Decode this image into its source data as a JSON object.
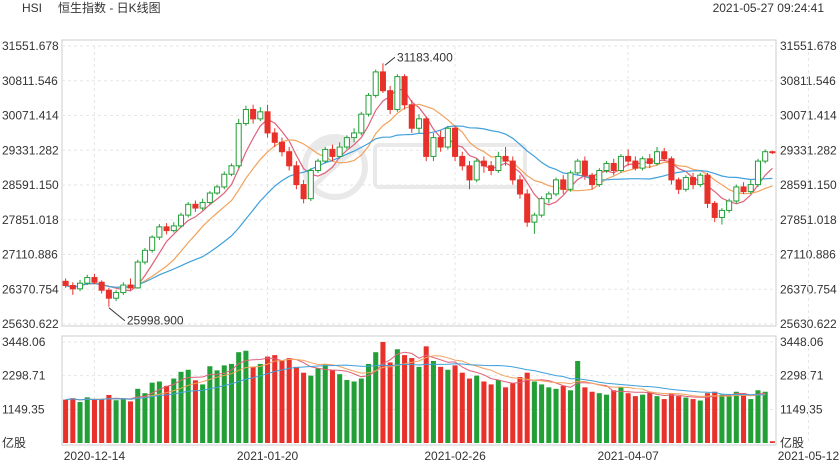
{
  "header": {
    "symbol": "HSI",
    "title": "恒生指数 - 日K线图",
    "datetime": "2021-05-27 09:24:41"
  },
  "colors": {
    "up": "#22a037",
    "down": "#e8312a",
    "ma5": "#e0607a",
    "ma10": "#f2a25c",
    "ma20": "#3fa0dc",
    "vol_ma": "#e0607a",
    "vol_ma2": "#3fa0dc"
  },
  "chart_data": {
    "type": "candlestick",
    "price_axis": {
      "ticks": [
        "31551.678",
        "30811.546",
        "30071.414",
        "29331.282",
        "28591.150",
        "27851.018",
        "27110.886",
        "26370.754",
        "25630.622"
      ],
      "ylim": [
        25630.622,
        31551.678
      ]
    },
    "volume_axis": {
      "ticks": [
        "3448.06",
        "2298.71",
        "1149.35",
        "亿股"
      ],
      "ylim": [
        0,
        3448.06
      ]
    },
    "x_tick_labels": [
      {
        "label": "2020-12-14",
        "index": 4
      },
      {
        "label": "2021-01-20",
        "index": 28
      },
      {
        "label": "2021-02-26",
        "index": 54
      },
      {
        "label": "2021-04-07",
        "index": 78
      },
      {
        "label": "2021-05-12",
        "index": 103
      }
    ],
    "annotations": [
      {
        "label": "31183.400",
        "index": 44,
        "value": 31183.4
      },
      {
        "label": "25998.900",
        "index": 6,
        "value": 25998.9
      }
    ],
    "candles": [
      {
        "o": 26540,
        "c": 26450,
        "h": 26600,
        "l": 26400,
        "v": 1480
      },
      {
        "o": 26450,
        "c": 26380,
        "h": 26520,
        "l": 26250,
        "v": 1530
      },
      {
        "o": 26380,
        "c": 26500,
        "h": 26570,
        "l": 26330,
        "v": 1400
      },
      {
        "o": 26500,
        "c": 26620,
        "h": 26680,
        "l": 26460,
        "v": 1560
      },
      {
        "o": 26620,
        "c": 26520,
        "h": 26700,
        "l": 26480,
        "v": 1480
      },
      {
        "o": 26520,
        "c": 26350,
        "h": 26560,
        "l": 26280,
        "v": 1500
      },
      {
        "o": 26350,
        "c": 26180,
        "h": 26400,
        "l": 25999,
        "v": 1640
      },
      {
        "o": 26180,
        "c": 26300,
        "h": 26350,
        "l": 26120,
        "v": 1460
      },
      {
        "o": 26300,
        "c": 26460,
        "h": 26520,
        "l": 26250,
        "v": 1500
      },
      {
        "o": 26460,
        "c": 26400,
        "h": 26600,
        "l": 26350,
        "v": 1420
      },
      {
        "o": 26400,
        "c": 26950,
        "h": 27000,
        "l": 26380,
        "v": 1850
      },
      {
        "o": 26950,
        "c": 27200,
        "h": 27250,
        "l": 26900,
        "v": 1700
      },
      {
        "o": 27200,
        "c": 27480,
        "h": 27520,
        "l": 27150,
        "v": 2060
      },
      {
        "o": 27480,
        "c": 27700,
        "h": 27760,
        "l": 27420,
        "v": 2100
      },
      {
        "o": 27700,
        "c": 27620,
        "h": 27780,
        "l": 27540,
        "v": 1950
      },
      {
        "o": 27620,
        "c": 27720,
        "h": 27800,
        "l": 27580,
        "v": 2200
      },
      {
        "o": 27720,
        "c": 27950,
        "h": 28000,
        "l": 27680,
        "v": 2430
      },
      {
        "o": 27950,
        "c": 28180,
        "h": 28230,
        "l": 27900,
        "v": 2500
      },
      {
        "o": 28180,
        "c": 28100,
        "h": 28260,
        "l": 28020,
        "v": 2140
      },
      {
        "o": 28100,
        "c": 28220,
        "h": 28300,
        "l": 28050,
        "v": 2000
      },
      {
        "o": 28220,
        "c": 28420,
        "h": 28460,
        "l": 28170,
        "v": 2620
      },
      {
        "o": 28420,
        "c": 28550,
        "h": 28600,
        "l": 28380,
        "v": 2480
      },
      {
        "o": 28550,
        "c": 28820,
        "h": 28880,
        "l": 28500,
        "v": 2650
      },
      {
        "o": 28820,
        "c": 29000,
        "h": 29050,
        "l": 28780,
        "v": 2700
      },
      {
        "o": 29000,
        "c": 29900,
        "h": 30000,
        "l": 28950,
        "v": 3100
      },
      {
        "o": 29900,
        "c": 30200,
        "h": 30280,
        "l": 29850,
        "v": 3150
      },
      {
        "o": 30200,
        "c": 30000,
        "h": 30300,
        "l": 29900,
        "v": 2600
      },
      {
        "o": 30000,
        "c": 30150,
        "h": 30250,
        "l": 29950,
        "v": 2700
      },
      {
        "o": 30150,
        "c": 29700,
        "h": 30300,
        "l": 29600,
        "v": 2950
      },
      {
        "o": 29700,
        "c": 29500,
        "h": 29800,
        "l": 29400,
        "v": 3000
      },
      {
        "o": 29500,
        "c": 29300,
        "h": 29600,
        "l": 29200,
        "v": 2800
      },
      {
        "o": 29300,
        "c": 29000,
        "h": 29400,
        "l": 28900,
        "v": 2900
      },
      {
        "o": 29000,
        "c": 28600,
        "h": 29100,
        "l": 28500,
        "v": 2600
      },
      {
        "o": 28600,
        "c": 28300,
        "h": 28700,
        "l": 28200,
        "v": 2400
      },
      {
        "o": 28300,
        "c": 28900,
        "h": 28950,
        "l": 28250,
        "v": 2300
      },
      {
        "o": 28900,
        "c": 29100,
        "h": 29150,
        "l": 28850,
        "v": 2550
      },
      {
        "o": 29100,
        "c": 29350,
        "h": 29400,
        "l": 29050,
        "v": 2700
      },
      {
        "o": 29350,
        "c": 29200,
        "h": 29450,
        "l": 29100,
        "v": 2500
      },
      {
        "o": 29200,
        "c": 29400,
        "h": 29500,
        "l": 29150,
        "v": 2350
      },
      {
        "o": 29400,
        "c": 29600,
        "h": 29650,
        "l": 29350,
        "v": 2150
      },
      {
        "o": 29600,
        "c": 29700,
        "h": 29800,
        "l": 29500,
        "v": 2100
      },
      {
        "o": 29700,
        "c": 30100,
        "h": 30150,
        "l": 29650,
        "v": 2200
      },
      {
        "o": 30100,
        "c": 30500,
        "h": 30550,
        "l": 30050,
        "v": 2700
      },
      {
        "o": 30500,
        "c": 31000,
        "h": 31050,
        "l": 30450,
        "v": 3100
      },
      {
        "o": 31000,
        "c": 30600,
        "h": 31183,
        "l": 30550,
        "v": 3450
      },
      {
        "o": 30600,
        "c": 30200,
        "h": 30700,
        "l": 30100,
        "v": 2750
      },
      {
        "o": 30200,
        "c": 30900,
        "h": 30950,
        "l": 30150,
        "v": 3200
      },
      {
        "o": 30900,
        "c": 30300,
        "h": 30950,
        "l": 30200,
        "v": 3000
      },
      {
        "o": 30300,
        "c": 29800,
        "h": 30400,
        "l": 29700,
        "v": 2900
      },
      {
        "o": 29800,
        "c": 30000,
        "h": 30100,
        "l": 29700,
        "v": 2600
      },
      {
        "o": 30000,
        "c": 29200,
        "h": 30050,
        "l": 29100,
        "v": 3300
      },
      {
        "o": 29200,
        "c": 29600,
        "h": 29700,
        "l": 29100,
        "v": 2800
      },
      {
        "o": 29600,
        "c": 29400,
        "h": 29750,
        "l": 29300,
        "v": 2600
      },
      {
        "o": 29400,
        "c": 29800,
        "h": 29850,
        "l": 29350,
        "v": 2500
      },
      {
        "o": 29800,
        "c": 29200,
        "h": 29850,
        "l": 29100,
        "v": 2650
      },
      {
        "o": 29200,
        "c": 29000,
        "h": 29300,
        "l": 28900,
        "v": 2400
      },
      {
        "o": 29000,
        "c": 28700,
        "h": 29100,
        "l": 28500,
        "v": 2200
      },
      {
        "o": 28700,
        "c": 29100,
        "h": 29150,
        "l": 28650,
        "v": 2300
      },
      {
        "o": 29100,
        "c": 29000,
        "h": 29200,
        "l": 28850,
        "v": 2100
      },
      {
        "o": 29000,
        "c": 28900,
        "h": 29100,
        "l": 28800,
        "v": 2000
      },
      {
        "o": 28900,
        "c": 29200,
        "h": 29300,
        "l": 28850,
        "v": 2150
      },
      {
        "o": 29200,
        "c": 29100,
        "h": 29400,
        "l": 29000,
        "v": 1900
      },
      {
        "o": 29100,
        "c": 28700,
        "h": 29200,
        "l": 28600,
        "v": 2050
      },
      {
        "o": 28700,
        "c": 28400,
        "h": 28800,
        "l": 28300,
        "v": 2250
      },
      {
        "o": 28400,
        "c": 27800,
        "h": 28500,
        "l": 27700,
        "v": 2400
      },
      {
        "o": 27800,
        "c": 27950,
        "h": 28000,
        "l": 27550,
        "v": 2100
      },
      {
        "o": 27950,
        "c": 28300,
        "h": 28350,
        "l": 27900,
        "v": 2000
      },
      {
        "o": 28300,
        "c": 28400,
        "h": 28450,
        "l": 28200,
        "v": 1900
      },
      {
        "o": 28400,
        "c": 28700,
        "h": 28750,
        "l": 28350,
        "v": 1850
      },
      {
        "o": 28700,
        "c": 28500,
        "h": 28800,
        "l": 28400,
        "v": 1950
      },
      {
        "o": 28500,
        "c": 28850,
        "h": 28900,
        "l": 28450,
        "v": 1800
      },
      {
        "o": 28850,
        "c": 29100,
        "h": 29150,
        "l": 28800,
        "v": 2800
      },
      {
        "o": 29100,
        "c": 28800,
        "h": 29200,
        "l": 28700,
        "v": 1900
      },
      {
        "o": 28800,
        "c": 28600,
        "h": 28850,
        "l": 28500,
        "v": 1750
      },
      {
        "o": 28600,
        "c": 28900,
        "h": 28950,
        "l": 28550,
        "v": 1700
      },
      {
        "o": 28900,
        "c": 29050,
        "h": 29100,
        "l": 28850,
        "v": 1650
      },
      {
        "o": 29050,
        "c": 28900,
        "h": 29150,
        "l": 28800,
        "v": 1800
      },
      {
        "o": 28900,
        "c": 29200,
        "h": 29250,
        "l": 28850,
        "v": 1900
      },
      {
        "o": 29200,
        "c": 29100,
        "h": 29350,
        "l": 29000,
        "v": 1700
      },
      {
        "o": 29100,
        "c": 28950,
        "h": 29200,
        "l": 28900,
        "v": 1600
      },
      {
        "o": 28950,
        "c": 29150,
        "h": 29200,
        "l": 28900,
        "v": 1650
      },
      {
        "o": 29150,
        "c": 29050,
        "h": 29250,
        "l": 28950,
        "v": 1750
      },
      {
        "o": 29050,
        "c": 29300,
        "h": 29400,
        "l": 29000,
        "v": 1600
      },
      {
        "o": 29300,
        "c": 29150,
        "h": 29380,
        "l": 29100,
        "v": 1500
      },
      {
        "o": 29150,
        "c": 28700,
        "h": 29200,
        "l": 28600,
        "v": 1700
      },
      {
        "o": 28700,
        "c": 28500,
        "h": 28750,
        "l": 28400,
        "v": 1600
      },
      {
        "o": 28500,
        "c": 28750,
        "h": 28800,
        "l": 28450,
        "v": 1550
      },
      {
        "o": 28750,
        "c": 28600,
        "h": 28850,
        "l": 28500,
        "v": 1500
      },
      {
        "o": 28600,
        "c": 28800,
        "h": 28850,
        "l": 28550,
        "v": 1450
      },
      {
        "o": 28800,
        "c": 28200,
        "h": 28850,
        "l": 28100,
        "v": 1700
      },
      {
        "o": 28200,
        "c": 27900,
        "h": 28250,
        "l": 27800,
        "v": 1750
      },
      {
        "o": 27900,
        "c": 28050,
        "h": 28100,
        "l": 27750,
        "v": 1650
      },
      {
        "o": 28050,
        "c": 28250,
        "h": 28300,
        "l": 28000,
        "v": 1600
      },
      {
        "o": 28250,
        "c": 28550,
        "h": 28600,
        "l": 28200,
        "v": 1750
      },
      {
        "o": 28550,
        "c": 28450,
        "h": 28650,
        "l": 28400,
        "v": 1700
      },
      {
        "o": 28450,
        "c": 28600,
        "h": 28700,
        "l": 28400,
        "v": 1500
      },
      {
        "o": 28600,
        "c": 29100,
        "h": 29150,
        "l": 28550,
        "v": 1800
      },
      {
        "o": 29100,
        "c": 29300,
        "h": 29350,
        "l": 29050,
        "v": 1750
      },
      {
        "o": 29300,
        "c": 29280,
        "h": 29320,
        "l": 29250,
        "v": 60
      }
    ]
  }
}
